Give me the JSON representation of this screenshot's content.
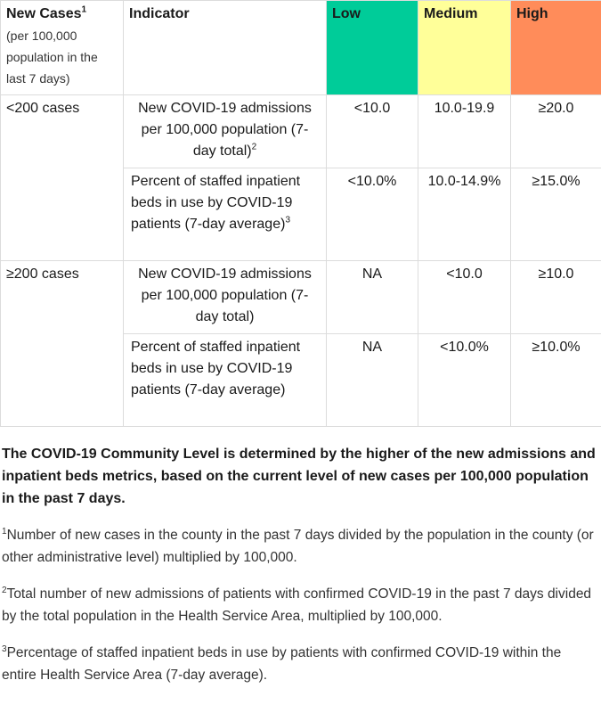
{
  "table": {
    "headers": {
      "new_cases": "New Cases",
      "new_cases_sup": "1",
      "new_cases_sub": "(per 100,000 population in the last 7 days)",
      "indicator": "Indicator",
      "low": "Low",
      "medium": "Medium",
      "high": "High"
    },
    "level_colors": {
      "low": "#00cc99",
      "medium": "#ffff99",
      "high": "#ff8c5a"
    },
    "groups": [
      {
        "cases": "<200 cases",
        "rows": [
          {
            "indicator": "New COVID-19 admissions per 100,000 population (7-day total)",
            "sup": "2",
            "low": "<10.0",
            "medium": "10.0-19.9",
            "high": "≥20.0"
          },
          {
            "indicator": "Percent of staffed inpatient beds in use by COVID-19 patients (7-day average)",
            "sup": "3",
            "low": "<10.0%",
            "medium": "10.0-14.9%",
            "high": "≥15.0%"
          }
        ]
      },
      {
        "cases": "≥200 cases",
        "rows": [
          {
            "indicator": "New COVID-19 admissions per 100,000 population (7-day total)",
            "sup": "",
            "low": "NA",
            "medium": "<10.0",
            "high": "≥10.0"
          },
          {
            "indicator": "Percent of staffed inpatient beds in use by COVID-19 patients (7-day average)",
            "sup": "",
            "low": "NA",
            "medium": "<10.0%",
            "high": "≥10.0%"
          }
        ]
      }
    ]
  },
  "summary": "The COVID-19 Community Level is determined by the higher of the new admissions and inpatient beds metrics, based on the current level of new cases per 100,000 population in the past 7 days.",
  "footnotes": [
    {
      "num": "1",
      "text": "Number of new cases in the county in the past 7 days divided by the population in the county (or other administrative level) multiplied by 100,000."
    },
    {
      "num": "2",
      "text": "Total number of new admissions of patients with confirmed COVID-19 in the past 7 days divided by the total population in the Health Service Area, multiplied by 100,000."
    },
    {
      "num": "3",
      "text": "Percentage of staffed inpatient beds in use by patients with confirmed COVID-19 within the entire Health Service Area (7-day average)."
    }
  ]
}
